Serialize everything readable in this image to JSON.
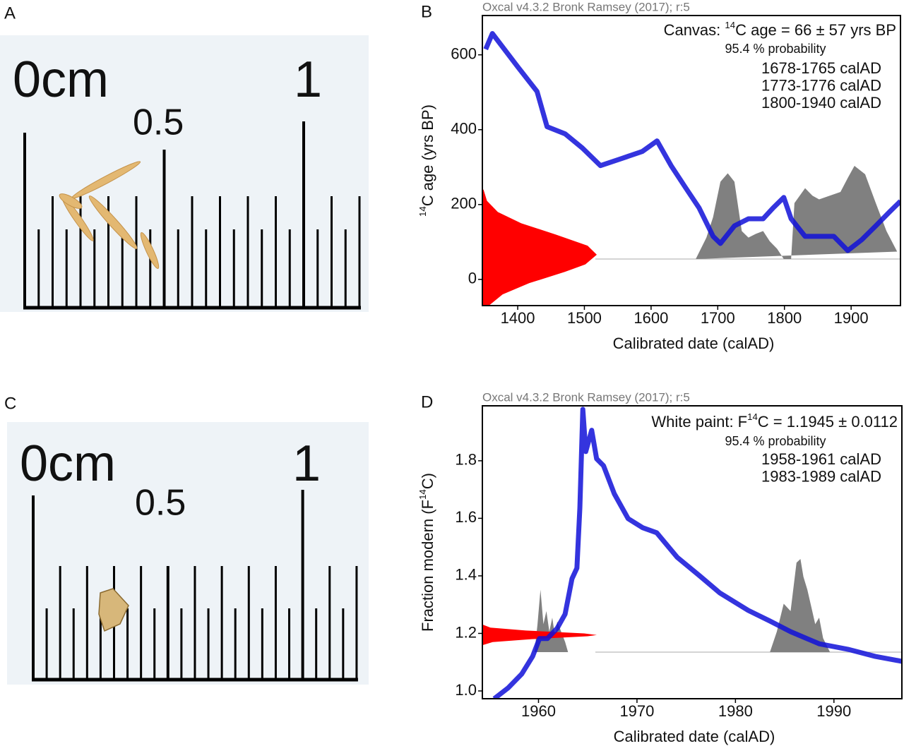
{
  "panels": [
    {
      "label": "A",
      "ruler": {
        "zero": "0cm",
        "half": "0.5",
        "one": "1"
      }
    },
    {
      "label": "C",
      "ruler": {
        "zero": "0cm",
        "half": "0.5",
        "one": "1"
      }
    }
  ],
  "chart_data": [
    {
      "type": "line",
      "label": "B",
      "header": "Oxcal v4.3.2 Bronk Ramsey (2017); r:5",
      "annotation": [
        "Canvas: ",
        "14",
        "C age = 66 ± 57 yrs BP"
      ],
      "probability_label": "95.4 % probability",
      "ranges": [
        "1678-1765 calAD",
        "1773-1776 calAD",
        "1800-1940 calAD"
      ],
      "xlabel": "Calibrated date (calAD)",
      "ylabel": [
        "14",
        "C age (yrs BP)"
      ],
      "xlim": [
        1347,
        1974
      ],
      "ylim": [
        -70,
        705
      ],
      "xticks": [
        1400,
        1500,
        1600,
        1700,
        1800,
        1900
      ],
      "yticks": [
        0,
        200,
        400,
        600
      ],
      "color": "#1010d8",
      "x": [
        1352,
        1362,
        1400,
        1429,
        1444,
        1471,
        1497,
        1524,
        1556,
        1587,
        1609,
        1630,
        1651,
        1672,
        1693,
        1704,
        1725,
        1746,
        1768,
        1783,
        1799,
        1810,
        1831,
        1852,
        1874,
        1895,
        1916,
        1937,
        1958,
        1974
      ],
      "values": [
        615,
        657,
        568,
        502,
        408,
        389,
        351,
        304,
        323,
        342,
        370,
        304,
        247,
        191,
        115,
        96,
        143,
        162,
        162,
        191,
        219,
        162,
        115,
        115,
        115,
        77,
        106,
        143,
        181,
        209
      ],
      "calendar_probability": {
        "color": "#808080",
        "x": [
          1667,
          1683,
          1693,
          1704,
          1715,
          1725,
          1736,
          1746,
          1757,
          1768,
          1778,
          1789,
          1799,
          1810,
          1815,
          1831,
          1842,
          1852,
          1868,
          1884,
          1895,
          1905,
          1921,
          1937,
          1953,
          1969
        ],
        "values": [
          0,
          0.23,
          0.45,
          0.83,
          0.92,
          0.83,
          0.3,
          0.23,
          0.27,
          0.3,
          0.19,
          0.11,
          0,
          0,
          0.6,
          0.76,
          0.68,
          0.64,
          0.68,
          0.72,
          0.87,
          1,
          0.91,
          0.6,
          0.3,
          0.08
        ]
      },
      "radiocarbon_probability": {
        "color": "#ff0000",
        "y": [
          -70,
          -40,
          -10,
          20,
          40,
          66,
          90,
          120,
          150,
          180,
          210,
          240
        ],
        "values": [
          0.057,
          0.177,
          0.41,
          0.72,
          0.9,
          1,
          0.92,
          0.64,
          0.34,
          0.135,
          0.04,
          0.01
        ]
      }
    },
    {
      "type": "line",
      "label": "D",
      "header": "Oxcal v4.3.2 Bronk Ramsey (2017); r:5",
      "annotation": [
        "White paint: F",
        "14",
        "C  = 1.1945 ± 0.0112"
      ],
      "probability_label": "95.4 % probability",
      "ranges": [
        "1958-1961 calAD",
        "1983-1989 calAD"
      ],
      "xlabel": "Calibrated date (calAD)",
      "ylabel": [
        "Fraction modern (F",
        "14",
        "C)"
      ],
      "xlim": [
        1954.3,
        1996.9
      ],
      "ylim": [
        0.973,
        1.991
      ],
      "xticks": [
        1960,
        1970,
        1980,
        1990
      ],
      "yticks": [
        {
          "value": 1,
          "label": "1.0"
        },
        1.2,
        1.4,
        1.6,
        1.8
      ],
      "color": "#1010d8",
      "x": [
        1955.5,
        1956.9,
        1958.3,
        1959.4,
        1960.1,
        1960.9,
        1961.9,
        1962.7,
        1963.4,
        1963.9,
        1964.2,
        1964.5,
        1964.8,
        1965.4,
        1965.9,
        1966.6,
        1967.7,
        1969.1,
        1970.6,
        1972.0,
        1974.1,
        1976.3,
        1978.4,
        1981.3,
        1983.5,
        1985.6,
        1988.5,
        1991.4,
        1994.2,
        1996.9
      ],
      "values": [
        0.973,
        1.01,
        1.059,
        1.12,
        1.182,
        1.182,
        1.218,
        1.267,
        1.39,
        1.427,
        1.636,
        1.979,
        1.832,
        1.906,
        1.807,
        1.783,
        1.685,
        1.599,
        1.567,
        1.55,
        1.464,
        1.402,
        1.341,
        1.28,
        1.243,
        1.206,
        1.164,
        1.145,
        1.12,
        1.103
      ],
      "calendar_probability": {
        "color": "#808080",
        "x": [
          1959.6,
          1959.9,
          1960.2,
          1960.5,
          1960.8,
          1961.1,
          1961.4,
          1961.7,
          1961.9,
          1962.3,
          1962.7,
          1963.0,
          1983.5,
          1984.2,
          1984.9,
          1985.6,
          1986.2,
          1986.6,
          1986.9,
          1987.3,
          1987.8,
          1988.1,
          1988.5,
          1988.9,
          1989.6
        ],
        "values": [
          0,
          0.3,
          0.67,
          0.3,
          0.44,
          0.22,
          0.37,
          0.15,
          0.33,
          0.22,
          0.11,
          0,
          0,
          0.22,
          0.52,
          0.44,
          0.96,
          1,
          0.81,
          0.67,
          0.44,
          0.3,
          0.37,
          0.15,
          0
        ]
      },
      "radiocarbon_probability": {
        "color": "#ff0000",
        "y": [
          1.16,
          1.17,
          1.18,
          1.19,
          1.1945,
          1.2,
          1.21,
          1.22,
          1.23
        ],
        "values": [
          0.009,
          0.09,
          0.43,
          0.92,
          1,
          0.89,
          0.38,
          0.07,
          0.007
        ]
      }
    }
  ]
}
